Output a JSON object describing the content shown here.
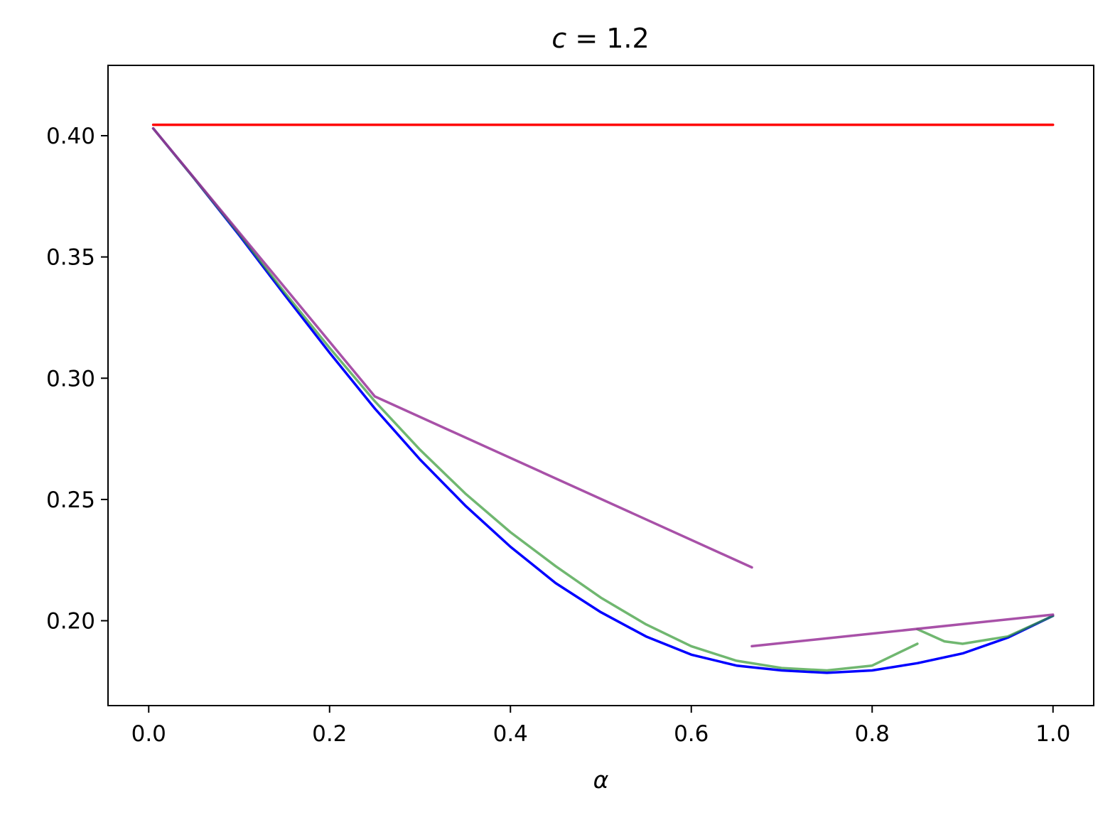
{
  "chart_data": {
    "type": "line",
    "title": "c = 1.2",
    "title_math": {
      "var": "c",
      "op": " = ",
      "value": "1.2"
    },
    "xlabel": "α",
    "ylabel": "",
    "xlim": [
      -0.045,
      1.045
    ],
    "ylim": [
      0.165,
      0.429
    ],
    "xticks": [
      {
        "value": 0.0,
        "label": "0.0"
      },
      {
        "value": 0.2,
        "label": "0.2"
      },
      {
        "value": 0.4,
        "label": "0.4"
      },
      {
        "value": 0.6,
        "label": "0.6"
      },
      {
        "value": 0.8,
        "label": "0.8"
      },
      {
        "value": 1.0,
        "label": "1.0"
      }
    ],
    "yticks": [
      {
        "value": 0.2,
        "label": "0.20"
      },
      {
        "value": 0.25,
        "label": "0.25"
      },
      {
        "value": 0.3,
        "label": "0.30"
      },
      {
        "value": 0.35,
        "label": "0.35"
      },
      {
        "value": 0.4,
        "label": "0.40"
      }
    ],
    "grid": false,
    "legend": "none",
    "series": [
      {
        "color": "#ff0000",
        "opacity": 1.0,
        "points": [
          [
            0.005,
            0.4045
          ],
          [
            1.0,
            0.4045
          ]
        ]
      },
      {
        "color": "#0000ff",
        "opacity": 1.0,
        "points": [
          [
            0.005,
            0.403
          ],
          [
            0.05,
            0.3825
          ],
          [
            0.1,
            0.359
          ],
          [
            0.15,
            0.3345
          ],
          [
            0.2,
            0.3105
          ],
          [
            0.25,
            0.2875
          ],
          [
            0.3,
            0.2665
          ],
          [
            0.35,
            0.2475
          ],
          [
            0.4,
            0.2305
          ],
          [
            0.45,
            0.2155
          ],
          [
            0.5,
            0.2035
          ],
          [
            0.55,
            0.1935
          ],
          [
            0.6,
            0.186
          ],
          [
            0.65,
            0.1815
          ],
          [
            0.7,
            0.1795
          ],
          [
            0.75,
            0.1785
          ],
          [
            0.8,
            0.1795
          ],
          [
            0.85,
            0.1825
          ],
          [
            0.9,
            0.1865
          ],
          [
            0.95,
            0.193
          ],
          [
            1.0,
            0.202
          ]
        ]
      },
      {
        "color": "#339933",
        "opacity": 0.7,
        "points": [
          [
            0.005,
            0.403
          ],
          [
            0.05,
            0.3825
          ],
          [
            0.1,
            0.3595
          ],
          [
            0.15,
            0.3355
          ],
          [
            0.2,
            0.3125
          ],
          [
            0.25,
            0.2905
          ],
          [
            0.3,
            0.2705
          ],
          [
            0.35,
            0.2525
          ],
          [
            0.4,
            0.2365
          ],
          [
            0.45,
            0.2225
          ],
          [
            0.5,
            0.2095
          ],
          [
            0.55,
            0.1985
          ],
          [
            0.6,
            0.1895
          ],
          [
            0.65,
            0.1835
          ],
          [
            0.7,
            0.1805
          ],
          [
            0.75,
            0.1795
          ],
          [
            0.8,
            0.1815
          ],
          [
            0.85,
            0.1905
          ]
        ]
      },
      {
        "color": "#339933",
        "opacity": 0.7,
        "points": [
          [
            0.85,
            0.1965
          ],
          [
            0.88,
            0.1915
          ],
          [
            0.9,
            0.1905
          ],
          [
            0.95,
            0.1935
          ],
          [
            1.0,
            0.202
          ]
        ]
      },
      {
        "color": "#993399",
        "opacity": 0.85,
        "points": [
          [
            0.005,
            0.403
          ],
          [
            0.25,
            0.2925
          ],
          [
            0.667,
            0.222
          ]
        ]
      },
      {
        "color": "#993399",
        "opacity": 0.85,
        "points": [
          [
            0.667,
            0.1895
          ],
          [
            1.0,
            0.2025
          ]
        ]
      }
    ]
  }
}
